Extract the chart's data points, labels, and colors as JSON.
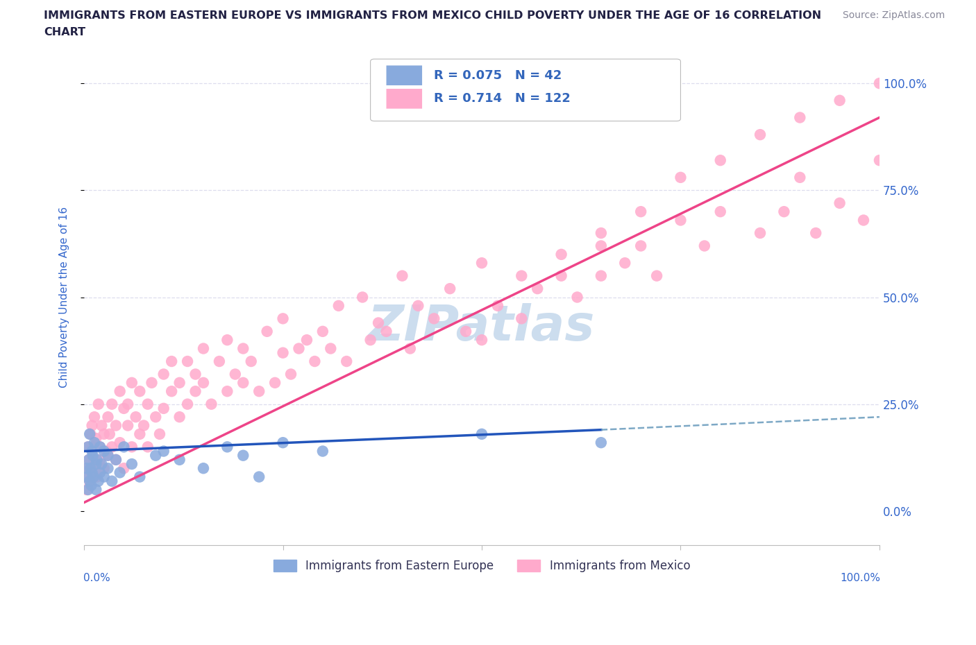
{
  "title_line1": "IMMIGRANTS FROM EASTERN EUROPE VS IMMIGRANTS FROM MEXICO CHILD POVERTY UNDER THE AGE OF 16 CORRELATION",
  "title_line2": "CHART",
  "source": "Source: ZipAtlas.com",
  "ylabel": "Child Poverty Under the Age of 16",
  "ytick_labels": [
    "0.0%",
    "25.0%",
    "50.0%",
    "75.0%",
    "100.0%"
  ],
  "ytick_vals": [
    0,
    25,
    50,
    75,
    100
  ],
  "xlim": [
    0,
    100
  ],
  "ylim": [
    -8,
    108
  ],
  "eastern_europe_R": 0.075,
  "eastern_europe_N": 42,
  "mexico_R": 0.714,
  "mexico_N": 122,
  "color_blue_scatter": "#88AADD",
  "color_pink_scatter": "#FFAACC",
  "color_line_blue_solid": "#2255BB",
  "color_line_pink_solid": "#EE4488",
  "color_line_blue_dashed": "#6699BB",
  "color_title": "#222244",
  "color_source": "#888899",
  "color_axis_blue": "#3366CC",
  "color_legend_rval": "#3366BB",
  "color_grid": "#DDDDEE",
  "watermark_color": "#CCDDEEFF",
  "eastern_europe_x": [
    0.3,
    0.4,
    0.5,
    0.5,
    0.6,
    0.7,
    0.7,
    0.8,
    0.9,
    1.0,
    1.0,
    1.1,
    1.2,
    1.3,
    1.5,
    1.5,
    1.6,
    1.8,
    2.0,
    2.0,
    2.2,
    2.5,
    2.5,
    3.0,
    3.0,
    3.5,
    4.0,
    4.5,
    5.0,
    6.0,
    7.0,
    9.0,
    10.0,
    12.0,
    15.0,
    18.0,
    20.0,
    22.0,
    25.0,
    30.0,
    50.0,
    65.0
  ],
  "eastern_europe_y": [
    10,
    8,
    15,
    5,
    12,
    7,
    18,
    10,
    6,
    14,
    9,
    13,
    8,
    16,
    11,
    5,
    12,
    7,
    15,
    9,
    11,
    14,
    8,
    13,
    10,
    7,
    12,
    9,
    15,
    11,
    8,
    13,
    14,
    12,
    10,
    15,
    13,
    8,
    16,
    14,
    18,
    16
  ],
  "mexico_x": [
    0.3,
    0.4,
    0.5,
    0.5,
    0.6,
    0.7,
    0.8,
    0.9,
    1.0,
    1.0,
    1.1,
    1.2,
    1.3,
    1.5,
    1.5,
    1.6,
    1.8,
    2.0,
    2.0,
    2.2,
    2.5,
    2.5,
    2.8,
    3.0,
    3.0,
    3.2,
    3.5,
    3.5,
    4.0,
    4.0,
    4.5,
    4.5,
    5.0,
    5.0,
    5.5,
    5.5,
    6.0,
    6.0,
    6.5,
    7.0,
    7.0,
    7.5,
    8.0,
    8.0,
    8.5,
    9.0,
    9.5,
    10.0,
    10.0,
    11.0,
    11.0,
    12.0,
    12.0,
    13.0,
    13.0,
    14.0,
    14.0,
    15.0,
    15.0,
    16.0,
    17.0,
    18.0,
    18.0,
    19.0,
    20.0,
    20.0,
    21.0,
    22.0,
    23.0,
    24.0,
    25.0,
    25.0,
    26.0,
    27.0,
    28.0,
    29.0,
    30.0,
    31.0,
    32.0,
    33.0,
    35.0,
    36.0,
    37.0,
    38.0,
    40.0,
    41.0,
    42.0,
    44.0,
    46.0,
    48.0,
    50.0,
    52.0,
    55.0,
    57.0,
    60.0,
    62.0,
    65.0,
    68.0,
    70.0,
    72.0,
    75.0,
    78.0,
    80.0,
    85.0,
    88.0,
    90.0,
    92.0,
    95.0,
    98.0,
    100.0,
    50.0,
    55.0,
    60.0,
    65.0,
    70.0,
    75.0,
    80.0,
    85.0,
    90.0,
    95.0,
    100.0,
    65.0
  ],
  "mexico_y": [
    5,
    10,
    8,
    15,
    12,
    7,
    18,
    10,
    20,
    9,
    15,
    12,
    22,
    10,
    17,
    8,
    25,
    15,
    12,
    20,
    18,
    10,
    14,
    22,
    13,
    18,
    25,
    15,
    20,
    12,
    28,
    16,
    24,
    10,
    20,
    25,
    15,
    30,
    22,
    18,
    28,
    20,
    25,
    15,
    30,
    22,
    18,
    32,
    24,
    28,
    35,
    22,
    30,
    25,
    35,
    28,
    32,
    30,
    38,
    25,
    35,
    28,
    40,
    32,
    30,
    38,
    35,
    28,
    42,
    30,
    37,
    45,
    32,
    38,
    40,
    35,
    42,
    38,
    48,
    35,
    50,
    40,
    44,
    42,
    55,
    38,
    48,
    45,
    52,
    42,
    58,
    48,
    55,
    52,
    60,
    50,
    65,
    58,
    62,
    55,
    68,
    62,
    70,
    65,
    70,
    78,
    65,
    72,
    68,
    82,
    40,
    45,
    55,
    62,
    70,
    78,
    82,
    88,
    92,
    96,
    100,
    55
  ]
}
